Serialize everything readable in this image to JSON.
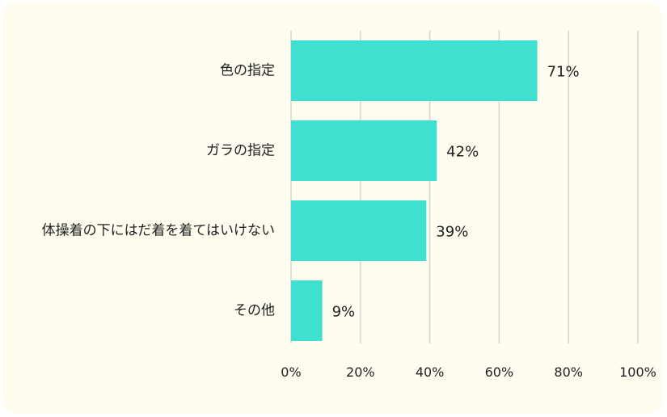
{
  "chart_data": {
    "type": "bar",
    "orientation": "horizontal",
    "categories": [
      "色の指定",
      "ガラの指定",
      "体操着の下にはだ着を着てはいけない",
      "その他"
    ],
    "values": [
      71,
      42,
      39,
      9
    ],
    "value_labels": [
      "71%",
      "42%",
      "39%",
      "9%"
    ],
    "xlim": [
      0,
      100
    ],
    "x_ticks": [
      0,
      20,
      40,
      60,
      80,
      100
    ],
    "x_tick_labels": [
      "0%",
      "20%",
      "40%",
      "60%",
      "80%",
      "100%"
    ],
    "grid": "vertical",
    "legend": "none",
    "colors": {
      "bar": "#40e0d0",
      "grid": "#d4d4d4",
      "background": "#fefdf0"
    }
  }
}
